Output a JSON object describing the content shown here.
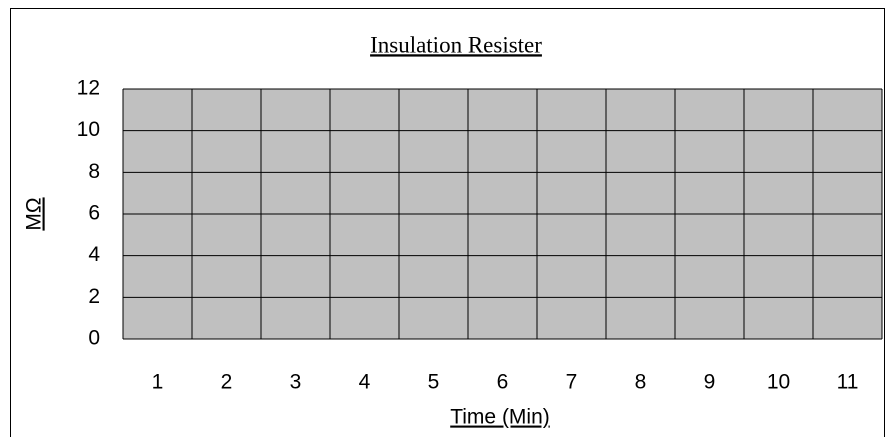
{
  "chart_data": {
    "type": "line",
    "title": "Insulation Resister",
    "x_label": "Time (Min)",
    "y_label": "MΩ",
    "categories": [
      "1",
      "2",
      "3",
      "4",
      "5",
      "6",
      "7",
      "8",
      "9",
      "10",
      "11"
    ],
    "series": [],
    "ylim": [
      0,
      12
    ],
    "yticks": [
      0,
      2,
      4,
      6,
      8,
      10,
      12
    ],
    "grid": true,
    "plot_background": "#c0c0c0",
    "grid_color": "#000000"
  }
}
